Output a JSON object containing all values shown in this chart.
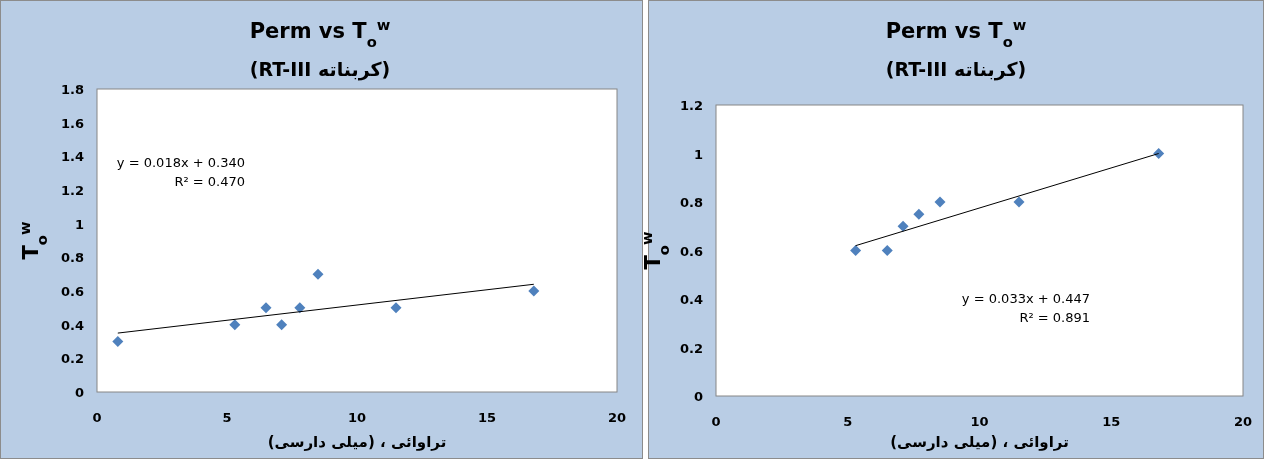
{
  "chart_data": [
    {
      "type": "scatter",
      "title": "Perm vs T$_{o}$$^{w}$",
      "subtitle": "(کربناته RT-III)",
      "xlabel": "تراوائی ، (میلی دارسی)",
      "ylabel": "T$_{o}$$^{w}$",
      "xlim": [
        0,
        20
      ],
      "xticks": [
        0,
        5,
        10,
        15,
        20
      ],
      "ylim": [
        0,
        1.8
      ],
      "yticks": [
        0,
        0.2,
        0.4,
        0.6,
        0.8,
        1,
        1.2,
        1.4,
        1.6,
        1.8
      ],
      "grid": false,
      "marker": "diamond",
      "annotations": [
        "y = 0.018x + 0.340",
        "R² = 0.470"
      ],
      "series": [
        {
          "color": "#4f81bd",
          "x": [
            0.8,
            5.3,
            6.5,
            7.1,
            7.8,
            8.5,
            11.5,
            16.8
          ],
          "values": [
            0.3,
            0.4,
            0.5,
            0.4,
            0.5,
            0.7,
            0.5,
            0.6
          ]
        },
        {
          "type": "line",
          "marker": "none",
          "color": "#000000",
          "x": [
            0.8,
            16.8
          ],
          "values": [
            0.35,
            0.64
          ]
        }
      ]
    },
    {
      "type": "scatter",
      "title": "Perm vs T$_{o}$$^{w}$",
      "subtitle": "(کربناته RT-III)",
      "xlabel": "تراوائی ، (میلی دارسی)",
      "ylabel": "T$_{o}$$^{w}$",
      "xlim": [
        0,
        20
      ],
      "xticks": [
        0,
        5,
        10,
        15,
        20
      ],
      "ylim": [
        0,
        1.2
      ],
      "yticks": [
        0,
        0.2,
        0.4,
        0.6,
        0.8,
        1,
        1.2
      ],
      "grid": false,
      "marker": "diamond",
      "annotations": [
        "y = 0.033x + 0.447",
        "R² = 0.891"
      ],
      "series": [
        {
          "color": "#4f81bd",
          "x": [
            5.3,
            6.5,
            7.1,
            7.7,
            8.5,
            11.5,
            16.8
          ],
          "values": [
            0.6,
            0.6,
            0.7,
            0.75,
            0.8,
            0.8,
            1
          ]
        },
        {
          "type": "line",
          "marker": "none",
          "color": "#000000",
          "x": [
            5.3,
            16.8
          ],
          "values": [
            0.62,
            1.0
          ]
        }
      ]
    }
  ]
}
